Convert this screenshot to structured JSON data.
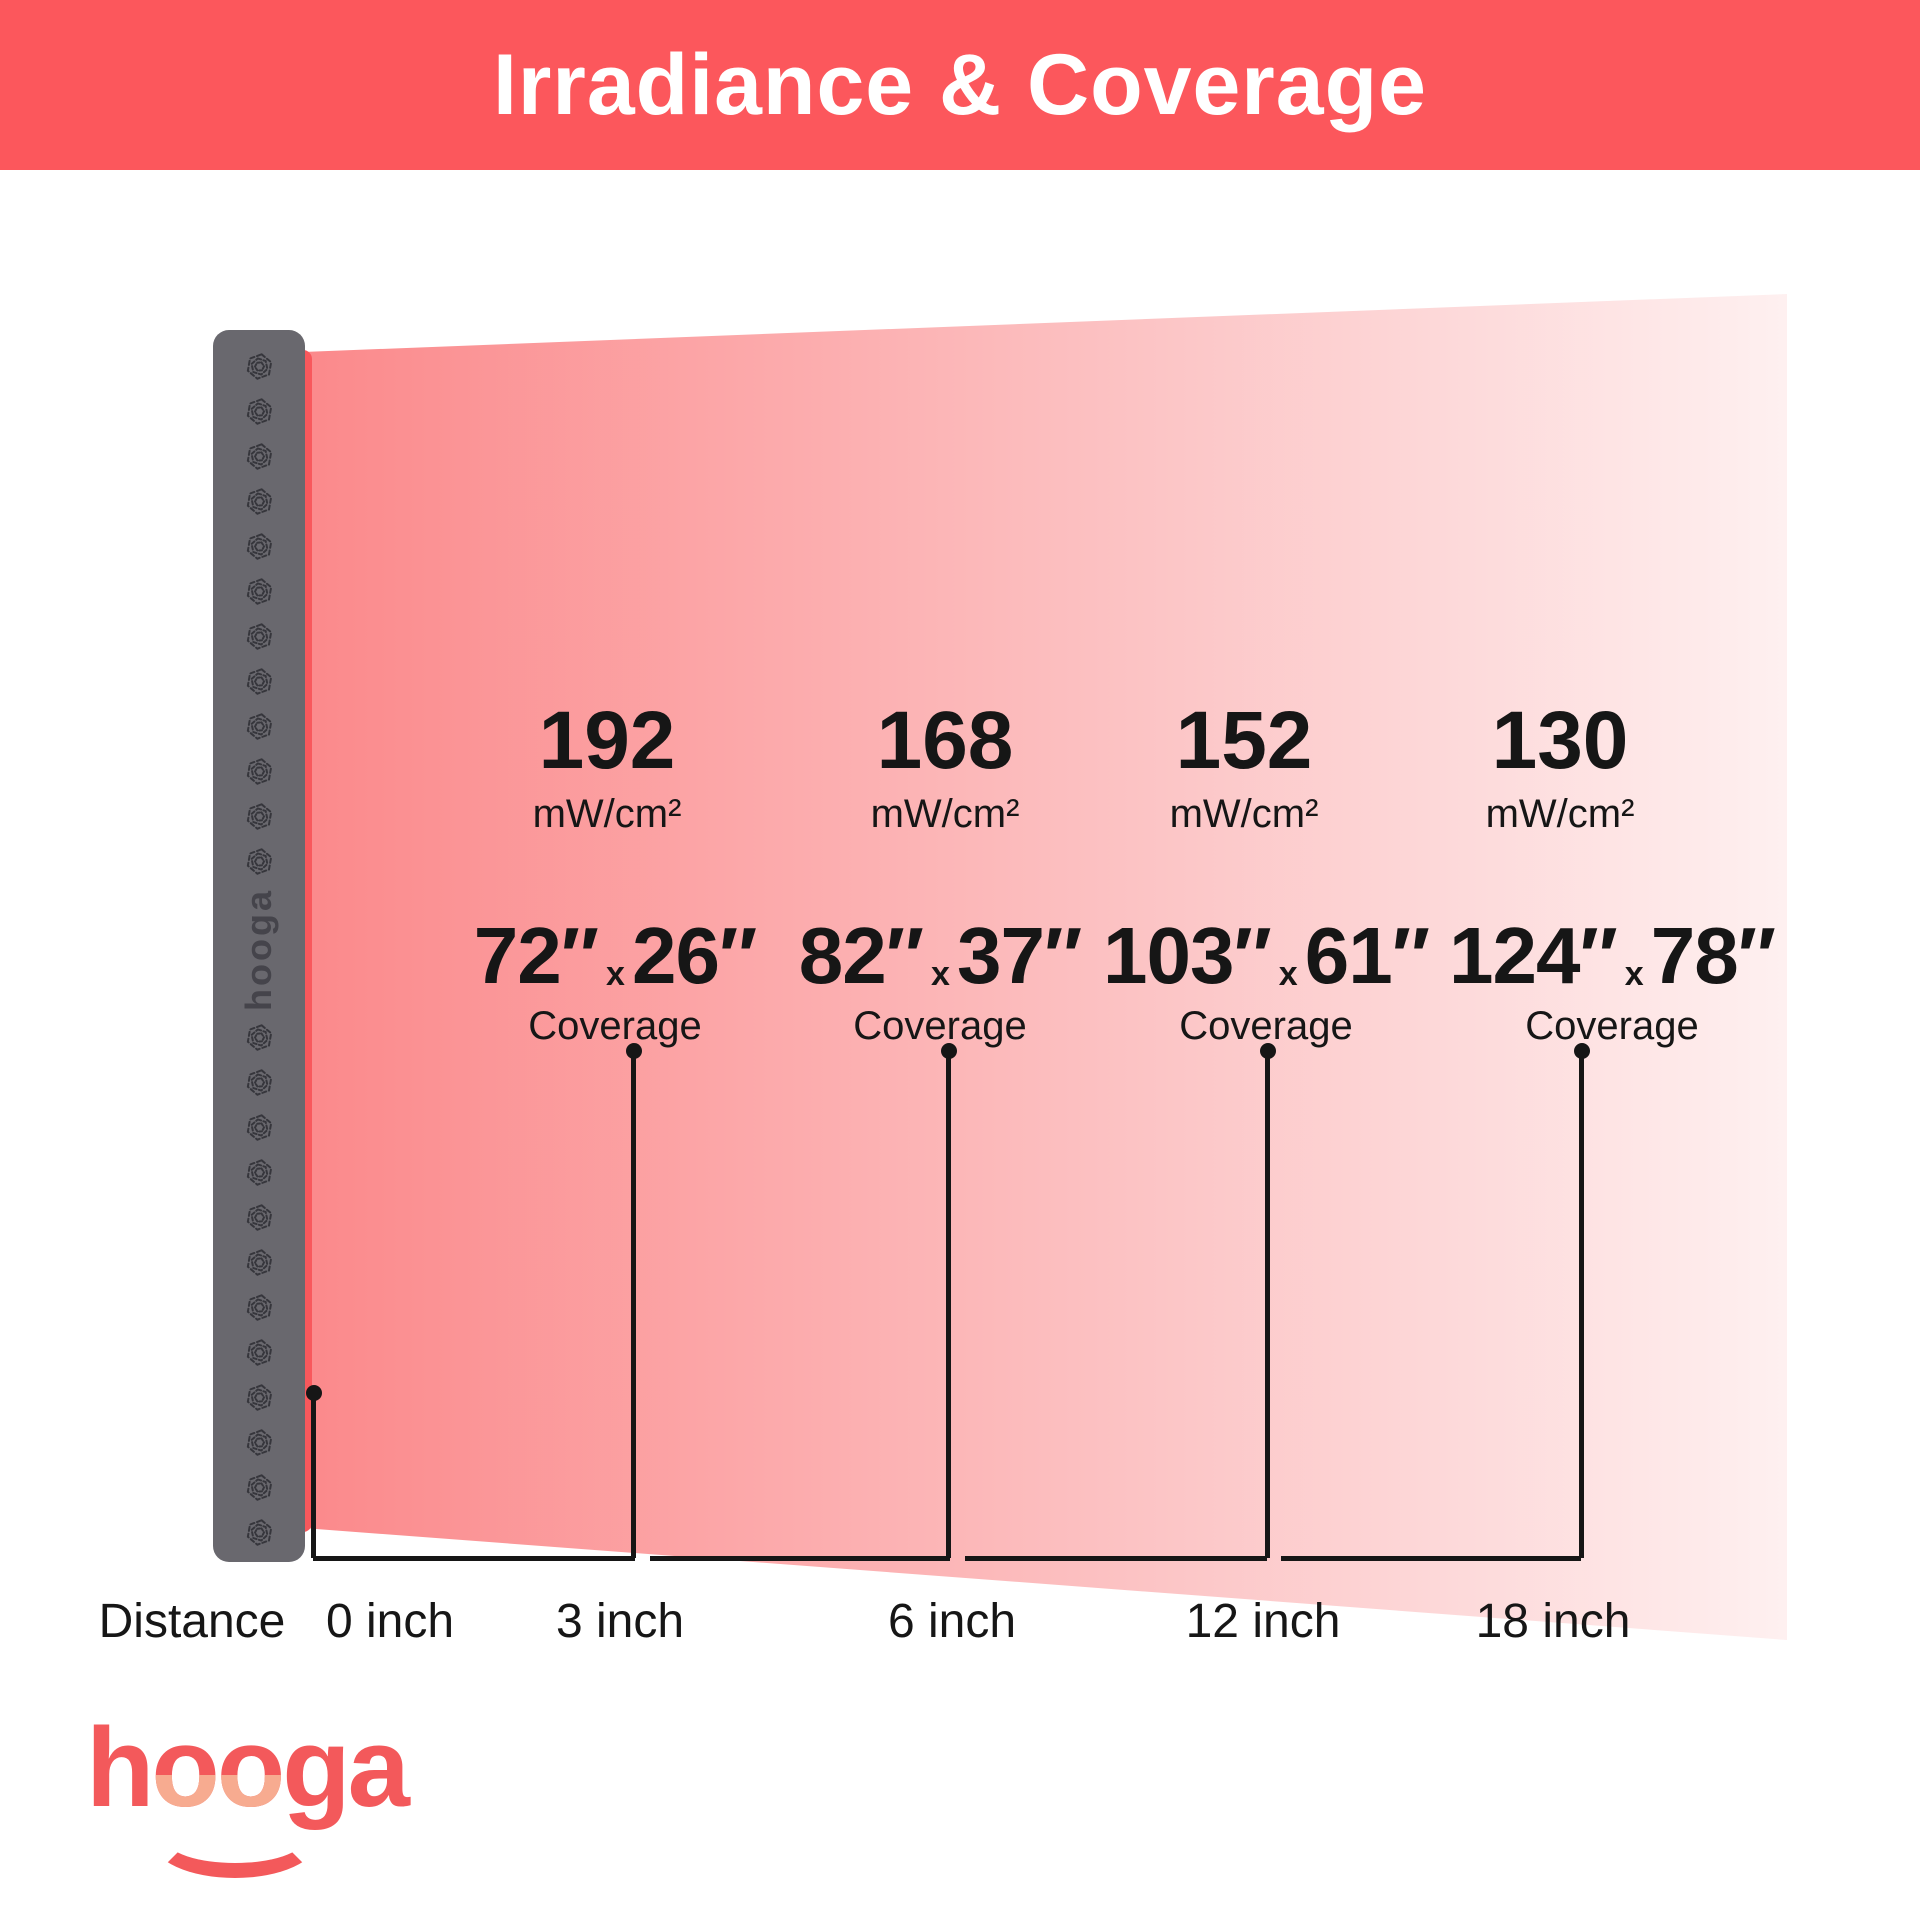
{
  "header": {
    "title": "Irradiance & Coverage",
    "bg_color": "#FC575C",
    "text_color": "#FFFFFF"
  },
  "device": {
    "side_label": "hooga",
    "led_icon": "led-cluster-icon",
    "panel_color": "#69686E",
    "strip_color": "#F8585C"
  },
  "columns": [
    {
      "irradiance": "192",
      "unit": "mW/cm²",
      "cov_w": "72″",
      "x": "x",
      "cov_h": "26″",
      "coverage_label": "Coverage",
      "distance": "3 inch"
    },
    {
      "irradiance": "168",
      "unit": "mW/cm²",
      "cov_w": "82″",
      "x": "x",
      "cov_h": "37″",
      "coverage_label": "Coverage",
      "distance": "6 inch"
    },
    {
      "irradiance": "152",
      "unit": "mW/cm²",
      "cov_w": "103″",
      "x": "x",
      "cov_h": "61″",
      "coverage_label": "Coverage",
      "distance": "12 inch"
    },
    {
      "irradiance": "130",
      "unit": "mW/cm²",
      "cov_w": "124″",
      "x": "x",
      "cov_h": "78″",
      "coverage_label": "Coverage",
      "distance": "18 inch"
    }
  ],
  "axis": {
    "distance_title": "Distance",
    "origin": "0 inch"
  },
  "brand": {
    "logo": "hooga"
  },
  "colors": {
    "beam_start": "#FB898B",
    "beam_end": "#FEF0F0",
    "line": "#161616",
    "logo": "#F3595B",
    "logo_accent": "#F7AB90"
  },
  "chart_data": {
    "type": "table",
    "title": "Irradiance & Coverage",
    "x": [
      3,
      6,
      12,
      18
    ],
    "x_unit": "inch",
    "xlabel": "Distance",
    "origin_label": "0 inch",
    "series": [
      {
        "name": "Irradiance (mW/cm²)",
        "values": [
          192,
          168,
          152,
          130
        ]
      },
      {
        "name": "Coverage width (inches)",
        "values": [
          72,
          82,
          103,
          124
        ]
      },
      {
        "name": "Coverage height (inches)",
        "values": [
          26,
          37,
          61,
          78
        ]
      }
    ]
  }
}
